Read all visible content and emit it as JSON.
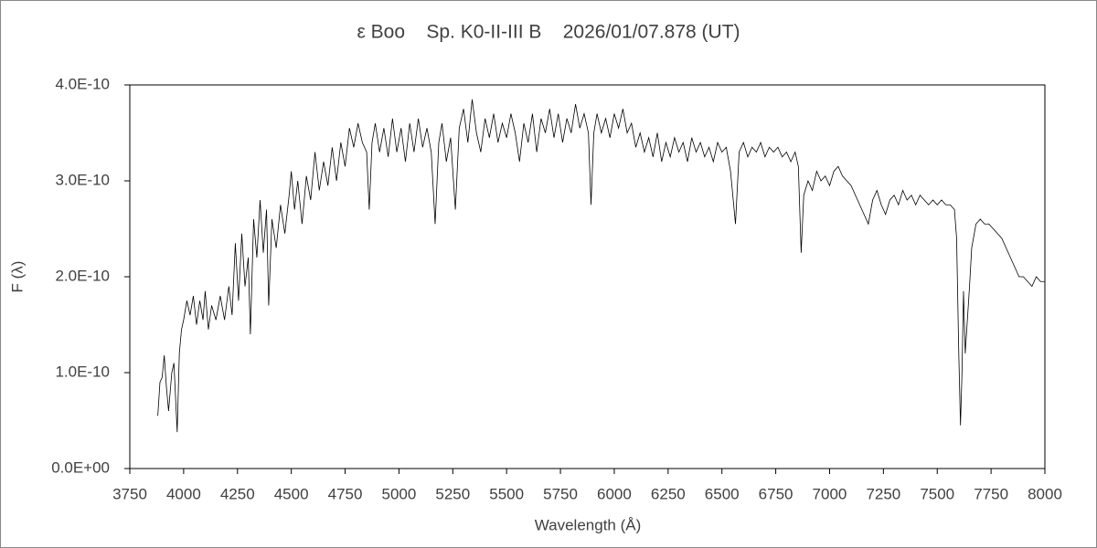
{
  "chart_data": {
    "type": "line",
    "title": "ε Boo    Sp. K0-II-III B    2026/01/07.878 (UT)",
    "xlabel": "Wavelength (Å)",
    "ylabel": "F (λ)",
    "color": "#000000",
    "xlim": [
      3750,
      8000
    ],
    "xticks": [
      3750,
      4000,
      4250,
      4500,
      4750,
      5000,
      5250,
      5500,
      5750,
      6000,
      6250,
      6500,
      6750,
      7000,
      7250,
      7500,
      7750,
      8000
    ],
    "ylim": [
      0,
      4e-10
    ],
    "yticks": [
      {
        "value": 0,
        "label": "0.0E+00"
      },
      {
        "value": 1e-10,
        "label": "1.0E-10"
      },
      {
        "value": 2e-10,
        "label": "2.0E-10"
      },
      {
        "value": 3e-10,
        "label": "3.0E-10"
      },
      {
        "value": 4e-10,
        "label": "4.0E-10"
      }
    ],
    "x": [
      3880,
      3890,
      3900,
      3910,
      3920,
      3930,
      3945,
      3955,
      3970,
      3980,
      3990,
      4000,
      4015,
      4030,
      4045,
      4060,
      4075,
      4090,
      4100,
      4115,
      4130,
      4150,
      4170,
      4190,
      4210,
      4225,
      4240,
      4255,
      4270,
      4285,
      4300,
      4310,
      4325,
      4340,
      4355,
      4370,
      4385,
      4395,
      4410,
      4430,
      4450,
      4470,
      4490,
      4500,
      4515,
      4530,
      4550,
      4570,
      4590,
      4610,
      4630,
      4650,
      4670,
      4690,
      4710,
      4730,
      4750,
      4770,
      4790,
      4810,
      4830,
      4850,
      4862,
      4875,
      4890,
      4910,
      4930,
      4950,
      4970,
      4990,
      5010,
      5030,
      5050,
      5070,
      5090,
      5110,
      5130,
      5150,
      5168,
      5185,
      5200,
      5220,
      5240,
      5262,
      5280,
      5300,
      5320,
      5340,
      5360,
      5380,
      5400,
      5420,
      5440,
      5460,
      5480,
      5500,
      5520,
      5540,
      5560,
      5580,
      5600,
      5620,
      5640,
      5660,
      5680,
      5700,
      5720,
      5740,
      5760,
      5780,
      5800,
      5820,
      5840,
      5860,
      5880,
      5892,
      5905,
      5920,
      5940,
      5960,
      5980,
      6000,
      6020,
      6040,
      6060,
      6080,
      6100,
      6120,
      6140,
      6160,
      6180,
      6200,
      6220,
      6240,
      6260,
      6280,
      6300,
      6320,
      6340,
      6360,
      6380,
      6400,
      6420,
      6440,
      6460,
      6480,
      6500,
      6520,
      6540,
      6563,
      6580,
      6600,
      6620,
      6640,
      6660,
      6680,
      6700,
      6720,
      6740,
      6760,
      6780,
      6800,
      6820,
      6840,
      6855,
      6868,
      6880,
      6900,
      6920,
      6940,
      6960,
      6980,
      7000,
      7020,
      7040,
      7060,
      7080,
      7100,
      7120,
      7140,
      7160,
      7180,
      7200,
      7220,
      7240,
      7260,
      7280,
      7300,
      7320,
      7340,
      7360,
      7380,
      7400,
      7420,
      7440,
      7460,
      7480,
      7500,
      7520,
      7540,
      7560,
      7580,
      7590,
      7600,
      7608,
      7615,
      7622,
      7630,
      7640,
      7650,
      7660,
      7680,
      7700,
      7720,
      7740,
      7760,
      7780,
      7800,
      7820,
      7840,
      7860,
      7880,
      7900,
      7920,
      7940,
      7960,
      7980,
      8000
    ],
    "values": [
      5.5e-11,
      9e-11,
      9.5e-11,
      1.18e-10,
      8.5e-11,
      6e-11,
      1e-10,
      1.1e-10,
      3.8e-11,
      1.2e-10,
      1.45e-10,
      1.55e-10,
      1.75e-10,
      1.6e-10,
      1.8e-10,
      1.5e-10,
      1.75e-10,
      1.55e-10,
      1.85e-10,
      1.45e-10,
      1.7e-10,
      1.55e-10,
      1.8e-10,
      1.55e-10,
      1.9e-10,
      1.6e-10,
      2.35e-10,
      1.75e-10,
      2.45e-10,
      1.9e-10,
      2.2e-10,
      1.4e-10,
      2.6e-10,
      2.2e-10,
      2.8e-10,
      2.25e-10,
      2.7e-10,
      1.7e-10,
      2.6e-10,
      2.3e-10,
      2.75e-10,
      2.45e-10,
      2.85e-10,
      3.1e-10,
      2.7e-10,
      3e-10,
      2.55e-10,
      3.05e-10,
      2.8e-10,
      3.3e-10,
      2.9e-10,
      3.2e-10,
      2.95e-10,
      3.35e-10,
      3e-10,
      3.4e-10,
      3.15e-10,
      3.55e-10,
      3.35e-10,
      3.6e-10,
      3.4e-10,
      3.3e-10,
      2.7e-10,
      3.4e-10,
      3.6e-10,
      3.3e-10,
      3.55e-10,
      3.25e-10,
      3.65e-10,
      3.3e-10,
      3.55e-10,
      3.2e-10,
      3.6e-10,
      3.3e-10,
      3.65e-10,
      3.35e-10,
      3.55e-10,
      3.3e-10,
      2.55e-10,
      3.4e-10,
      3.6e-10,
      3.2e-10,
      3.45e-10,
      2.7e-10,
      3.55e-10,
      3.75e-10,
      3.4e-10,
      3.85e-10,
      3.5e-10,
      3.3e-10,
      3.65e-10,
      3.45e-10,
      3.7e-10,
      3.4e-10,
      3.6e-10,
      3.45e-10,
      3.7e-10,
      3.5e-10,
      3.2e-10,
      3.6e-10,
      3.4e-10,
      3.7e-10,
      3.3e-10,
      3.65e-10,
      3.5e-10,
      3.75e-10,
      3.45e-10,
      3.7e-10,
      3.4e-10,
      3.65e-10,
      3.5e-10,
      3.8e-10,
      3.55e-10,
      3.7e-10,
      3.5e-10,
      2.75e-10,
      3.5e-10,
      3.7e-10,
      3.5e-10,
      3.65e-10,
      3.45e-10,
      3.7e-10,
      3.55e-10,
      3.75e-10,
      3.5e-10,
      3.6e-10,
      3.35e-10,
      3.5e-10,
      3.3e-10,
      3.45e-10,
      3.25e-10,
      3.5e-10,
      3.2e-10,
      3.4e-10,
      3.25e-10,
      3.45e-10,
      3.3e-10,
      3.4e-10,
      3.2e-10,
      3.45e-10,
      3.3e-10,
      3.4e-10,
      3.25e-10,
      3.35e-10,
      3.2e-10,
      3.4e-10,
      3.3e-10,
      3.35e-10,
      3.1e-10,
      2.55e-10,
      3.3e-10,
      3.4e-10,
      3.25e-10,
      3.35e-10,
      3.3e-10,
      3.4e-10,
      3.25e-10,
      3.35e-10,
      3.3e-10,
      3.35e-10,
      3.25e-10,
      3.3e-10,
      3.2e-10,
      3.3e-10,
      3.15e-10,
      2.25e-10,
      2.85e-10,
      3e-10,
      2.9e-10,
      3.1e-10,
      3e-10,
      3.05e-10,
      2.95e-10,
      3.1e-10,
      3.15e-10,
      3.05e-10,
      3e-10,
      2.95e-10,
      2.85e-10,
      2.75e-10,
      2.65e-10,
      2.55e-10,
      2.8e-10,
      2.9e-10,
      2.75e-10,
      2.65e-10,
      2.8e-10,
      2.85e-10,
      2.75e-10,
      2.9e-10,
      2.8e-10,
      2.85e-10,
      2.75e-10,
      2.85e-10,
      2.8e-10,
      2.75e-10,
      2.8e-10,
      2.75e-10,
      2.8e-10,
      2.75e-10,
      2.75e-10,
      2.7e-10,
      2.4e-10,
      1.2e-10,
      4.5e-11,
      1e-10,
      1.85e-10,
      1.2e-10,
      1.55e-10,
      1.9e-10,
      2.3e-10,
      2.55e-10,
      2.6e-10,
      2.55e-10,
      2.55e-10,
      2.5e-10,
      2.45e-10,
      2.4e-10,
      2.3e-10,
      2.2e-10,
      2.1e-10,
      2e-10,
      2e-10,
      1.95e-10,
      1.9e-10,
      2e-10,
      1.95e-10,
      1.95e-10
    ]
  }
}
